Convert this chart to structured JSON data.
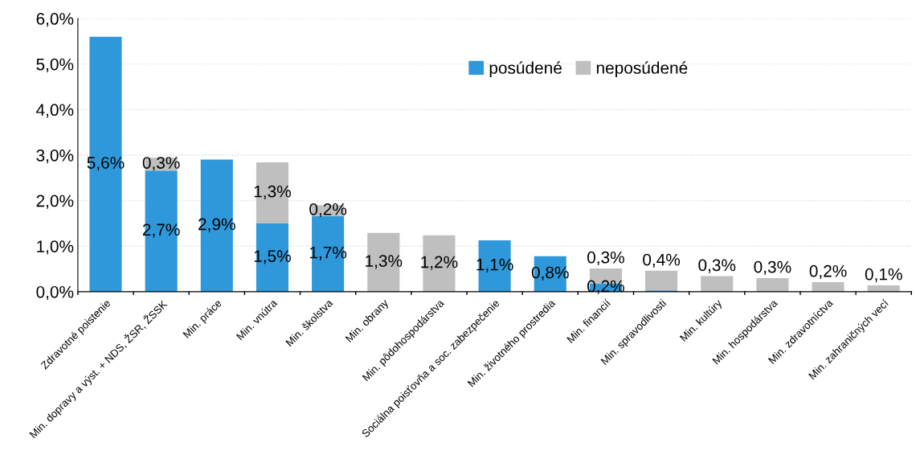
{
  "chart_data": {
    "type": "bar",
    "stacked": true,
    "categories": [
      "Zdravotné poistenie",
      "Min. dopravy a výst. + NDS, ŽSR, ŽSSK",
      "Min. práce",
      "Min. vnútra",
      "Min. školstva",
      "Min. obrany",
      "Min. pôdohospodárstva",
      "Sociálna poisťovňa a soc. zabezpečenie",
      "Min. životného prostredia",
      "Min. financií",
      "Min. spravodlivosti",
      "Min. kultúry",
      "Min. hospodárstva",
      "Min. zdravotníctva",
      "Min. zahraničných vecí"
    ],
    "series": [
      {
        "name": "posúdené",
        "color": "#2e98da",
        "values": [
          5.6,
          2.66,
          2.9,
          1.5,
          1.66,
          0,
          0,
          1.13,
          0.78,
          0.18,
          0.03,
          0,
          0,
          0,
          0
        ],
        "value_labels": [
          "5,6%",
          "2,7%",
          "2,9%",
          "1,5%",
          "1,7%",
          null,
          null,
          "1,1%",
          "0,8%",
          "0,2%",
          null,
          null,
          null,
          null,
          null
        ]
      },
      {
        "name": "neposúdené",
        "color": "#bfbfbf",
        "values": [
          0,
          0.28,
          0,
          1.34,
          0.24,
          1.29,
          1.24,
          0,
          0,
          0.33,
          0.43,
          0.34,
          0.3,
          0.21,
          0.14
        ],
        "value_labels": [
          null,
          "0,3%",
          null,
          "1,3%",
          "0,2%",
          "1,3%",
          "1,2%",
          null,
          null,
          "0,3%",
          "0,4%",
          "0,3%",
          "0,3%",
          "0,2%",
          "0,1%"
        ]
      }
    ],
    "ylim": [
      0,
      6
    ],
    "yticks": [
      {
        "value": 0,
        "label": "0,0%"
      },
      {
        "value": 1,
        "label": "1,0%"
      },
      {
        "value": 2,
        "label": "2,0%"
      },
      {
        "value": 3,
        "label": "3,0%"
      },
      {
        "value": 4,
        "label": "4,0%"
      },
      {
        "value": 5,
        "label": "5,0%"
      },
      {
        "value": 6,
        "label": "6,0%"
      }
    ],
    "grid": "y",
    "legend": "top right"
  }
}
